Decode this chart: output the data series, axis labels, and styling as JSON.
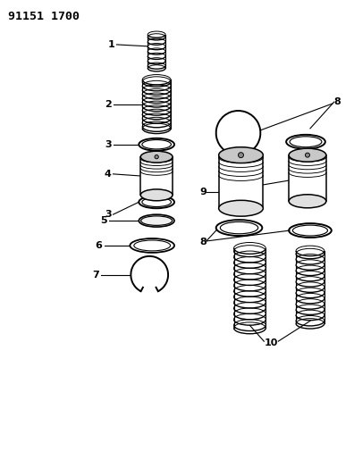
{
  "title": "91151 1700",
  "bg_color": "#ffffff",
  "line_color": "#000000",
  "fig_width": 3.96,
  "fig_height": 5.33,
  "dpi": 100
}
